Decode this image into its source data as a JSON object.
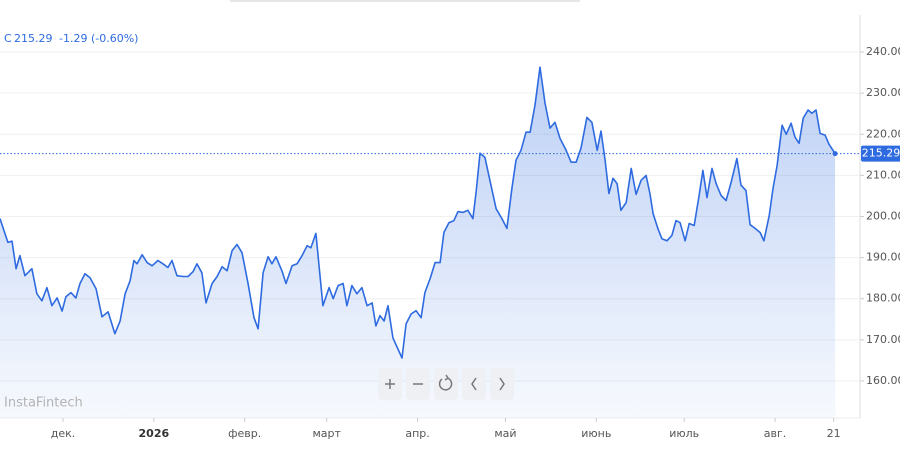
{
  "header": {
    "symbol": "C",
    "price": "215.29",
    "change": "-1.29 (-0.60%)"
  },
  "watermark": "InstaFintech",
  "chart_data": {
    "type": "area",
    "color": "#2e6be0",
    "last_value": 215.29,
    "xlim": [
      -21.5,
      272
    ],
    "ylim": [
      151,
      249
    ],
    "xticks": [
      {
        "value": 0,
        "label": "дек."
      },
      {
        "value": 31,
        "label": "2026"
      },
      {
        "value": 62,
        "label": "февр."
      },
      {
        "value": 90,
        "label": "март"
      },
      {
        "value": 121,
        "label": "апр."
      },
      {
        "value": 151,
        "label": "май"
      },
      {
        "value": 182,
        "label": "июнь"
      },
      {
        "value": 212,
        "label": "июль"
      },
      {
        "value": 243,
        "label": "авг."
      },
      {
        "value": 263,
        "label": "21"
      }
    ],
    "yticks": [
      {
        "value": 160,
        "label": "160.00"
      },
      {
        "value": 170,
        "label": "170.00"
      },
      {
        "value": 180,
        "label": "180.00"
      },
      {
        "value": 190,
        "label": "190.00"
      },
      {
        "value": 200,
        "label": "200.00"
      },
      {
        "value": 210,
        "label": "210.00"
      },
      {
        "value": 220,
        "label": "220.00"
      },
      {
        "value": 230,
        "label": "230.00"
      },
      {
        "value": 240,
        "label": "240.00"
      }
    ],
    "x": [
      -21.5,
      -18.8,
      -17.4,
      -16,
      -14.7,
      -13,
      -10.6,
      -8.9,
      -7.2,
      -5.5,
      -3.8,
      -2,
      -0.3,
      1,
      2.7,
      4.4,
      5.8,
      7.5,
      9.2,
      11.3,
      13.3,
      15.4,
      17.7,
      19.5,
      21.2,
      22.9,
      24.2,
      25.3,
      27,
      28.7,
      30.4,
      32.4,
      34.1,
      35.8,
      37.2,
      38.9,
      41,
      42.7,
      44.4,
      45.7,
      47.4,
      48.8,
      50.9,
      52.6,
      54.3,
      56,
      57.7,
      59.4,
      61.1,
      63.1,
      65.2,
      66.6,
      68.3,
      70,
      71.3,
      72.7,
      74.7,
      76.1,
      78.2,
      79.9,
      81.6,
      83.3,
      84.6,
      86.3,
      87.7,
      88.7,
      90.8,
      92.2,
      93.9,
      95.6,
      96.9,
      98.6,
      100.3,
      102,
      103.8,
      105.5,
      106.8,
      108.2,
      109.6,
      110.9,
      112.6,
      114.3,
      115.7,
      117.1,
      118.8,
      120.5,
      122.2,
      123.5,
      125.3,
      127,
      128.7,
      130,
      131.7,
      133.4,
      134.8,
      136.5,
      138.2,
      139.9,
      141,
      142.3,
      144,
      145.7,
      147.8,
      149.8,
      151.5,
      153.2,
      154.6,
      156.3,
      158,
      159.4,
      161.1,
      162.8,
      164.5,
      166.2,
      167.9,
      169.6,
      171.7,
      173.4,
      175.1,
      176.8,
      178.8,
      180.5,
      182.3,
      183.6,
      185,
      186.3,
      187.7,
      189.1,
      190.4,
      192.2,
      193.9,
      195.6,
      197.3,
      199,
      200.3,
      201.4,
      203.1,
      204.4,
      206.1,
      207.8,
      209.2,
      210.6,
      212.3,
      213.7,
      215.4,
      217.1,
      218.4,
      219.8,
      221.5,
      222.9,
      224.6,
      226.3,
      228,
      230,
      231.4,
      233.1,
      234.5,
      236.2,
      237.9,
      239.2,
      241,
      242.3,
      243.7,
      245.4,
      246.8,
      248.5,
      249.8,
      251.2,
      252.6,
      254.3,
      255.6,
      257,
      258.4,
      260.1,
      261.4,
      263.5
    ],
    "values": [
      199.5,
      193.7,
      194,
      187.3,
      190.5,
      185.6,
      187.3,
      181.2,
      179.5,
      182.7,
      178.3,
      180.2,
      177,
      180.5,
      181.5,
      180.2,
      183.7,
      186.1,
      185.1,
      182.4,
      175.6,
      176.8,
      171.5,
      174.6,
      181.2,
      184.4,
      189.3,
      188.5,
      190.7,
      188.8,
      188,
      189.3,
      188.5,
      187.6,
      189.3,
      185.6,
      185.4,
      185.4,
      186.6,
      188.5,
      186.3,
      179,
      183.7,
      185.4,
      187.8,
      186.8,
      191.7,
      193.2,
      191.2,
      183.9,
      175.4,
      172.7,
      186.3,
      190.2,
      188.5,
      190.2,
      186.8,
      183.7,
      188,
      188.5,
      190.5,
      192.9,
      192.4,
      195.9,
      185.6,
      178.3,
      182.7,
      180,
      183.2,
      183.7,
      178.3,
      183.2,
      181.2,
      182.7,
      178.3,
      179,
      173.4,
      175.9,
      174.6,
      178.3,
      170.5,
      167.8,
      165.6,
      173.9,
      176.3,
      177.1,
      175.4,
      181.5,
      184.9,
      188.8,
      188.8,
      196.1,
      198.5,
      199,
      201.2,
      201,
      201.5,
      199.5,
      205.9,
      215.4,
      214.4,
      208.8,
      201.9,
      199.5,
      197.1,
      206.8,
      213.7,
      216.1,
      220.5,
      220.5,
      227.1,
      236.3,
      227.6,
      221.5,
      222.9,
      219,
      216.1,
      213.2,
      213.2,
      216.6,
      224.1,
      222.9,
      216.1,
      220.8,
      213.7,
      205.6,
      209.3,
      208,
      201.5,
      203.4,
      211.7,
      205.4,
      208.8,
      210,
      205.6,
      200.7,
      196.9,
      194.6,
      194.1,
      195.4,
      199,
      198.5,
      194.1,
      198.3,
      197.8,
      205.1,
      211.2,
      204.6,
      211.7,
      208,
      205.1,
      203.9,
      208.3,
      214.1,
      207.6,
      206.3,
      198,
      197.1,
      196.1,
      194.1,
      200.2,
      206.8,
      212.4,
      222.2,
      220,
      222.7,
      219.3,
      217.8,
      223.9,
      225.9,
      225.1,
      225.9,
      220.2,
      219.8,
      217.6,
      215.29
    ]
  }
}
